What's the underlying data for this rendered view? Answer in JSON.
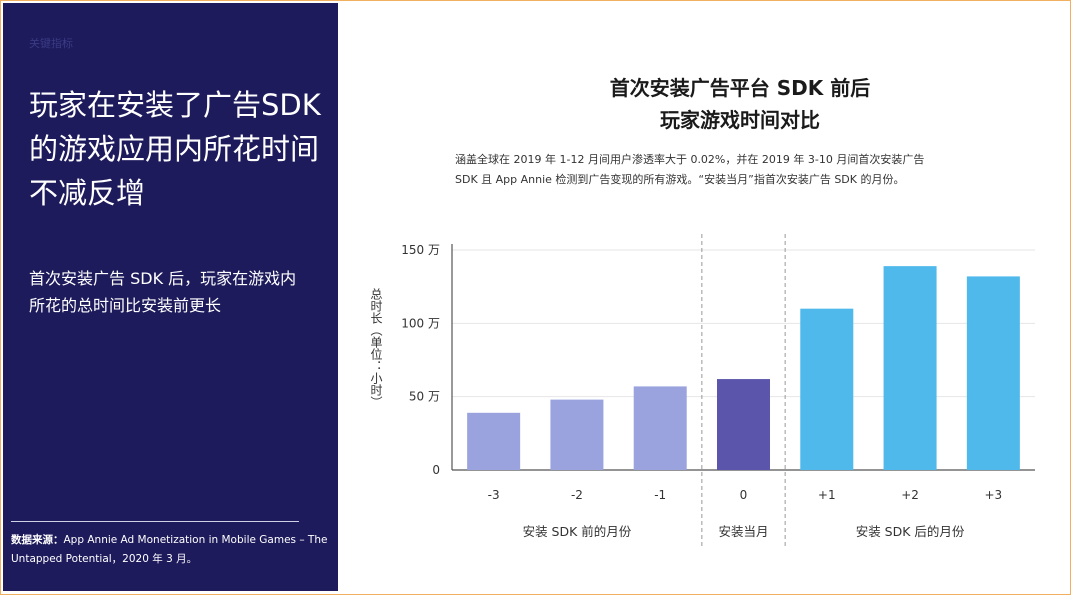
{
  "left": {
    "kicker": "关键指标",
    "headline": "玩家在安装了广告SDK 的游戏应用内所花时间不减反增",
    "subhead": "首次安装广告 SDK 后，玩家在游戏内所花的总时间比安装前更长",
    "source_label": "数据来源：",
    "source_text": "App Annie Ad Monetization in Mobile Games – The Untapped Potential，2020 年 3 月。"
  },
  "chart_data": {
    "type": "bar",
    "title": "首次安装广告平台 SDK 前后",
    "subtitle": "玩家游戏时间对比",
    "note_line1": "涵盖全球在 2019 年 1-12 月间用户渗透率大于 0.02%，并在 2019 年 3-10 月间首次安装广告",
    "note_line2": "SDK 且 App Annie 检测到广告变现的所有游戏。“安装当月”指首次安装广告 SDK 的月份。",
    "ylabel": "总时长（单位：小时）",
    "categories": [
      "-3",
      "-2",
      "-1",
      "0",
      "+1",
      "+2",
      "+3"
    ],
    "values": [
      39,
      48,
      57,
      62,
      110,
      139,
      132
    ],
    "bar_colors": [
      "#9aa3de",
      "#9aa3de",
      "#9aa3de",
      "#5b55ac",
      "#4fb9ec",
      "#4fb9ec",
      "#4fb9ec"
    ],
    "yticks": [
      {
        "value": 0,
        "label": "0"
      },
      {
        "value": 50,
        "label": "50 万"
      },
      {
        "value": 100,
        "label": "100 万"
      },
      {
        "value": 150,
        "label": "150 万"
      }
    ],
    "ylim": [
      0,
      150
    ],
    "groups": [
      {
        "label": "安装 SDK 前的月份",
        "from": 0,
        "to": 2
      },
      {
        "label": "安装当月",
        "from": 3,
        "to": 3
      },
      {
        "label": "安装 SDK 后的月份",
        "from": 4,
        "to": 6
      }
    ],
    "grid": true
  }
}
